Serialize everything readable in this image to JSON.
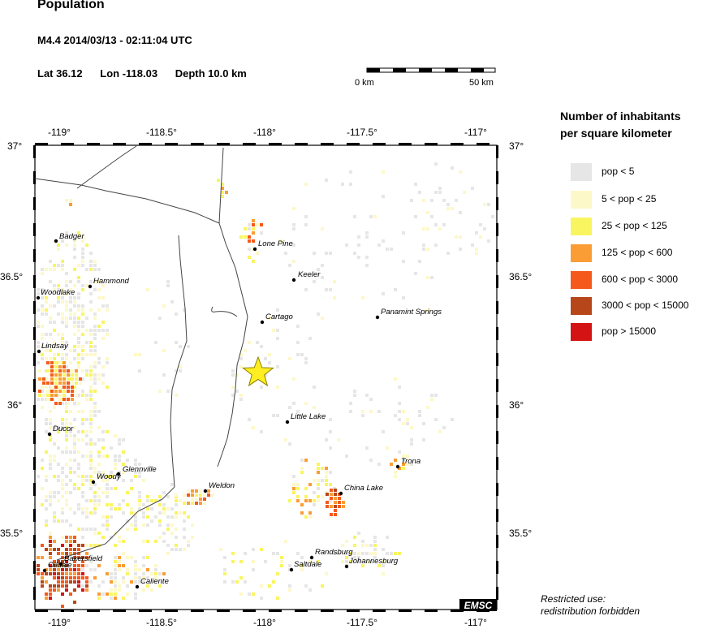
{
  "header": {
    "title": "Population",
    "event": "M4.4  2014/03/13 - 02:11:04 UTC",
    "lat": "Lat 36.12",
    "lon": "Lon -118.03",
    "depth": "Depth  10.0 km"
  },
  "scale_bar": {
    "start_label": "0 km",
    "end_label": "50 km"
  },
  "map": {
    "lon_ticks": [
      "-119°",
      "-118.5°",
      "-118°",
      "-117.5°",
      "-117°"
    ],
    "lat_ticks": [
      "37°",
      "36.5°",
      "36°",
      "35.5°"
    ],
    "epicenter": {
      "lat": 36.12,
      "lon": -118.03,
      "color": "#ffee22"
    },
    "cities": [
      {
        "name": "Badger"
      },
      {
        "name": "Lone Pine"
      },
      {
        "name": "Keeler"
      },
      {
        "name": "Hammond"
      },
      {
        "name": "Woodlake"
      },
      {
        "name": "Cartago"
      },
      {
        "name": "Panamint Springs"
      },
      {
        "name": "Lindsay"
      },
      {
        "name": "Little Lake"
      },
      {
        "name": "Ducor"
      },
      {
        "name": "Trona"
      },
      {
        "name": "Glennville"
      },
      {
        "name": "Woody"
      },
      {
        "name": "Weldon"
      },
      {
        "name": "China Lake"
      },
      {
        "name": "Randsburg"
      },
      {
        "name": "Bakersfield"
      },
      {
        "name": "Oildale"
      },
      {
        "name": "Saltdale"
      },
      {
        "name": "Johannesburg"
      },
      {
        "name": "Caliente"
      }
    ],
    "watermark": "EMSC"
  },
  "legend": {
    "title": "Number of inhabitants per square kilometer",
    "items": [
      {
        "label": "pop < 5",
        "color": "#e6e6e6"
      },
      {
        "label": "5 < pop < 25",
        "color": "#fdf8c8"
      },
      {
        "label": "25 < pop < 125",
        "color": "#f9f560"
      },
      {
        "label": "125 < pop < 600",
        "color": "#fa9d35"
      },
      {
        "label": "600 < pop < 3000",
        "color": "#f55a1c"
      },
      {
        "label": "3000 < pop < 15000",
        "color": "#b8461b"
      },
      {
        "label": "pop > 15000",
        "color": "#d41414"
      }
    ]
  },
  "notice": {
    "line1": "Restricted use:",
    "line2": "redistribution forbidden"
  }
}
